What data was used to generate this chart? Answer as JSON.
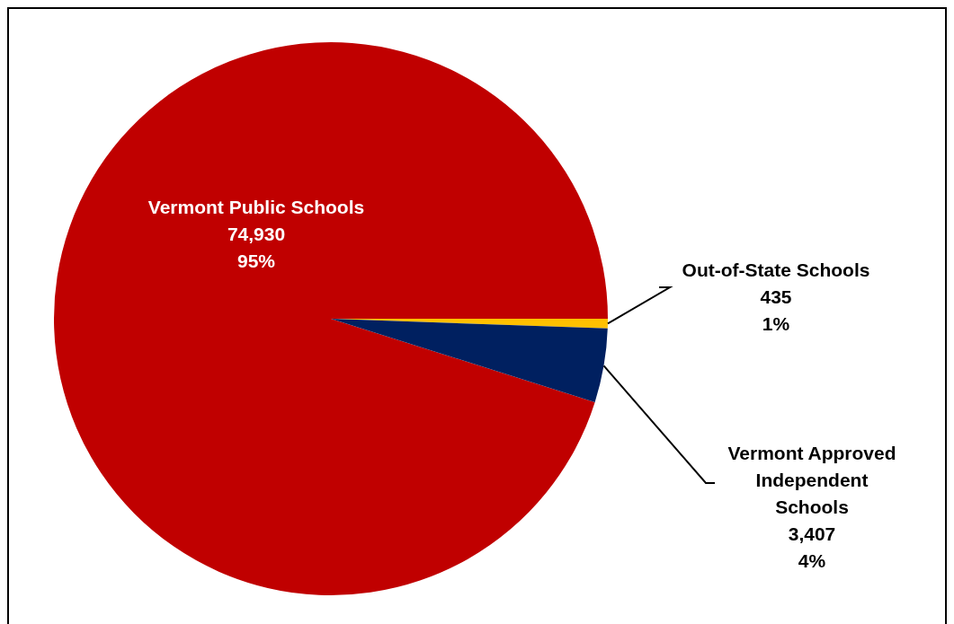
{
  "chart_data": {
    "type": "pie",
    "categories": [
      "Vermont Public Schools",
      "Out-of-State Schools",
      "Vermont Approved Independent Schools"
    ],
    "values": [
      74930,
      435,
      3407
    ],
    "colors": [
      "#c00000",
      "#ffc000",
      "#002060"
    ],
    "value_labels": [
      "74,930\n95%",
      "435\n1%",
      "3,407\n4%"
    ],
    "legend": false
  }
}
